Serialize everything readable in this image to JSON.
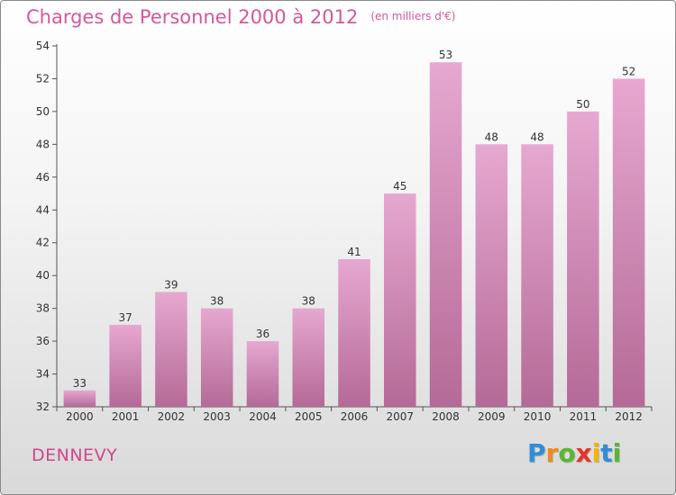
{
  "header": {
    "title": "Charges de Personnel 2000 à 2012",
    "unit": "(en milliers d'€)"
  },
  "footer": {
    "town": "DENNEVY",
    "logo": [
      "P",
      "r",
      "o",
      "x",
      "i",
      "t",
      "i"
    ],
    "logo_colors": [
      "#2f8fd6",
      "#f08a1c",
      "#5cb531",
      "#e5332a",
      "#f4b400",
      "#2f8fd6",
      "#5cb531"
    ]
  },
  "colors": {
    "bar_top": "#e6a8d0",
    "bar_bottom": "#b46a96",
    "axis": "#555555",
    "grid": "#cfcfcf"
  },
  "chart_data": {
    "type": "bar",
    "categories": [
      "2000",
      "2001",
      "2002",
      "2003",
      "2004",
      "2005",
      "2006",
      "2007",
      "2008",
      "2009",
      "2010",
      "2011",
      "2012"
    ],
    "values": [
      33,
      37,
      39,
      38,
      36,
      38,
      41,
      45,
      53,
      48,
      48,
      50,
      52
    ],
    "value_labels": [
      "33",
      "37",
      "39",
      "38",
      "36",
      "38",
      "41",
      "45",
      "53",
      "48",
      "48",
      "50",
      "52"
    ],
    "ylim": [
      32,
      54
    ],
    "yticks": [
      "32",
      "34",
      "36",
      "38",
      "40",
      "42",
      "44",
      "46",
      "48",
      "50",
      "52",
      "54"
    ],
    "ytick_values": [
      32,
      34,
      36,
      38,
      40,
      42,
      44,
      46,
      48,
      50,
      52,
      54
    ],
    "grid": false
  }
}
